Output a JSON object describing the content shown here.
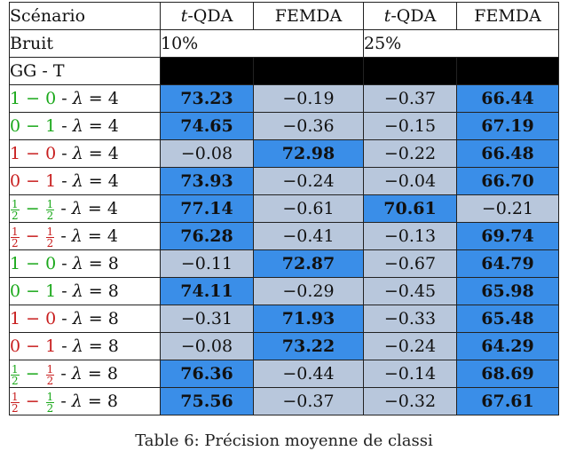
{
  "table": {
    "header": {
      "scenario": "Scénario",
      "m1": "t-QDA",
      "m2": "FEMDA",
      "m3": "t-QDA",
      "m4": "FEMDA"
    },
    "noise": {
      "label": "Bruit",
      "level1": "10%",
      "level2": "25%"
    },
    "section": "GG - T",
    "rows": [
      {
        "a": "1",
        "b": "0",
        "a_color": "green",
        "b_color": "green",
        "lambda": "4",
        "values": [
          "73.23",
          "−0.19",
          "−0.37",
          "66.44"
        ],
        "highlight": [
          true,
          false,
          false,
          true
        ]
      },
      {
        "a": "0",
        "b": "1",
        "a_color": "green",
        "b_color": "green",
        "lambda": "4",
        "values": [
          "74.65",
          "−0.36",
          "−0.15",
          "67.19"
        ],
        "highlight": [
          true,
          false,
          false,
          true
        ]
      },
      {
        "a": "1",
        "b": "0",
        "a_color": "red",
        "b_color": "red",
        "lambda": "4",
        "values": [
          "−0.08",
          "72.98",
          "−0.22",
          "66.48"
        ],
        "highlight": [
          false,
          true,
          false,
          true
        ]
      },
      {
        "a": "0",
        "b": "1",
        "a_color": "red",
        "b_color": "red",
        "lambda": "4",
        "values": [
          "73.93",
          "−0.24",
          "−0.04",
          "66.70"
        ],
        "highlight": [
          true,
          false,
          false,
          true
        ]
      },
      {
        "a": "1/2",
        "b": "1/2",
        "a_color": "green",
        "b_color": "green",
        "lambda": "4",
        "values": [
          "77.14",
          "−0.61",
          "70.61",
          "−0.21"
        ],
        "highlight": [
          true,
          false,
          true,
          false
        ]
      },
      {
        "a": "1/2",
        "b": "1/2",
        "a_color": "red",
        "b_color": "red",
        "lambda": "4",
        "values": [
          "76.28",
          "−0.41",
          "−0.13",
          "69.74"
        ],
        "highlight": [
          true,
          false,
          false,
          true
        ]
      },
      {
        "a": "1",
        "b": "0",
        "a_color": "green",
        "b_color": "green",
        "lambda": "8",
        "values": [
          "−0.11",
          "72.87",
          "−0.67",
          "64.79"
        ],
        "highlight": [
          false,
          true,
          false,
          true
        ]
      },
      {
        "a": "0",
        "b": "1",
        "a_color": "green",
        "b_color": "green",
        "lambda": "8",
        "values": [
          "74.11",
          "−0.29",
          "−0.45",
          "65.98"
        ],
        "highlight": [
          true,
          false,
          false,
          true
        ]
      },
      {
        "a": "1",
        "b": "0",
        "a_color": "red",
        "b_color": "red",
        "lambda": "8",
        "values": [
          "−0.31",
          "71.93",
          "−0.33",
          "65.48"
        ],
        "highlight": [
          false,
          true,
          false,
          true
        ]
      },
      {
        "a": "0",
        "b": "1",
        "a_color": "red",
        "b_color": "red",
        "lambda": "8",
        "values": [
          "−0.08",
          "73.22",
          "−0.24",
          "64.29"
        ],
        "highlight": [
          false,
          true,
          false,
          true
        ]
      },
      {
        "a": "1/2",
        "b": "1/2",
        "a_color": "green",
        "b_color": "red",
        "lambda": "8",
        "values": [
          "76.36",
          "−0.44",
          "−0.14",
          "68.69"
        ],
        "highlight": [
          true,
          false,
          false,
          true
        ]
      },
      {
        "a": "1/2",
        "b": "1/2",
        "a_color": "red",
        "b_color": "green",
        "lambda": "8",
        "values": [
          "75.56",
          "−0.37",
          "−0.32",
          "67.61"
        ],
        "highlight": [
          true,
          false,
          false,
          true
        ]
      }
    ]
  },
  "caption": "Table 6: Précision moyenne de classi"
}
